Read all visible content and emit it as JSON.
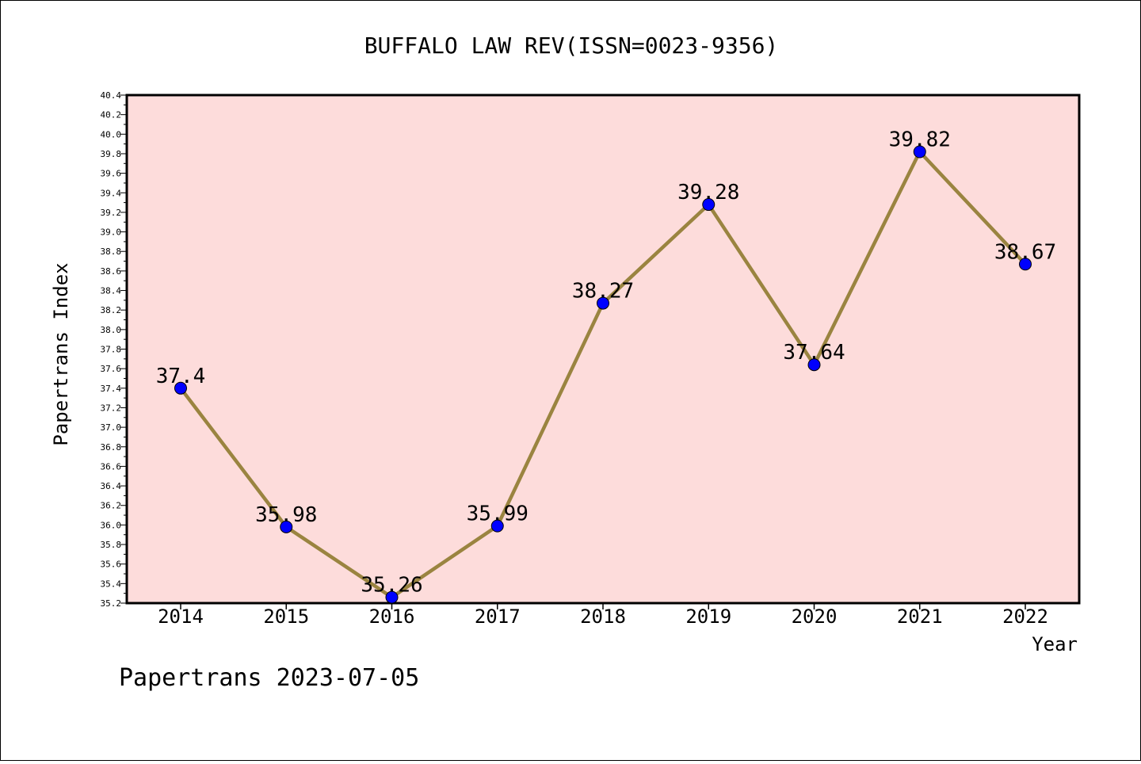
{
  "chart_data": {
    "type": "line",
    "title": "BUFFALO LAW REV(ISSN=0023-9356)",
    "xlabel": "Year",
    "ylabel": "Papertrans Index",
    "x": [
      "2014",
      "2015",
      "2016",
      "2017",
      "2018",
      "2019",
      "2020",
      "2021",
      "2022"
    ],
    "values": [
      37.4,
      35.98,
      35.26,
      35.99,
      38.27,
      39.28,
      37.64,
      39.82,
      38.67
    ],
    "data_labels": [
      "37.4",
      "35.98",
      "35.26",
      "35.99",
      "38.27",
      "39.28",
      "37.64",
      "39.82",
      "38.67"
    ],
    "ylim": [
      35.2,
      40.4
    ],
    "yticks": [
      "35.2",
      "35.4",
      "35.6",
      "35.8",
      "36.0",
      "36.2",
      "36.4",
      "36.6",
      "36.8",
      "37.0",
      "37.2",
      "37.4",
      "37.6",
      "37.8",
      "38.0",
      "38.2",
      "38.4",
      "38.6",
      "38.8",
      "39.0",
      "39.2",
      "39.4",
      "39.6",
      "39.8",
      "40.0",
      "40.2",
      "40.4"
    ],
    "grid": false,
    "colors": {
      "plot_background": "#fddcdb",
      "line": "#9a8440",
      "marker": "#0000ff"
    }
  },
  "footer": "Papertrans 2023-07-05"
}
